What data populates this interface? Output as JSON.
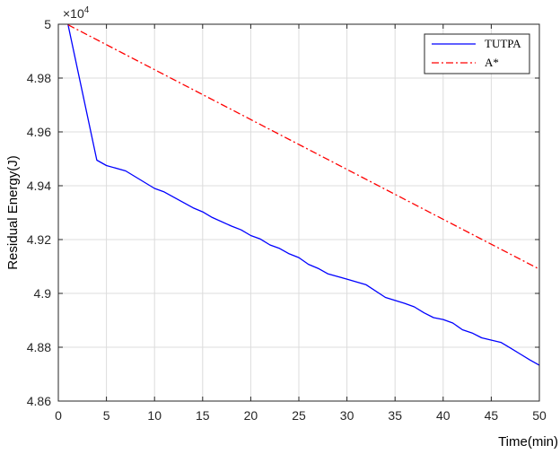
{
  "chart_data": {
    "type": "line",
    "xlabel": "Time(min)",
    "ylabel": "Residual Energy(J)",
    "xlim": [
      0,
      50
    ],
    "ylim": [
      4.86,
      5.0
    ],
    "y_multiplier": {
      "base": "×10",
      "exponent": "4"
    },
    "xticks": [
      0,
      5,
      10,
      15,
      20,
      25,
      30,
      35,
      40,
      45,
      50
    ],
    "yticks": [
      4.86,
      4.88,
      4.9,
      4.92,
      4.94,
      4.96,
      4.98,
      5.0
    ],
    "xtick_labels": [
      "0",
      "5",
      "10",
      "15",
      "20",
      "25",
      "30",
      "35",
      "40",
      "45",
      "50"
    ],
    "ytick_labels": [
      "4.86",
      "4.88",
      "4.9",
      "4.92",
      "4.94",
      "4.96",
      "4.98",
      "5"
    ],
    "grid": true,
    "legend_position": "top-right",
    "series": [
      {
        "name": "TUTPA",
        "color": "#0000ff",
        "style": "solid",
        "x": [
          1,
          4,
          5,
          7,
          10,
          11,
          14,
          15,
          16,
          18,
          19,
          20,
          21,
          22,
          23,
          24,
          25,
          26,
          27,
          28,
          29,
          30,
          32,
          34,
          36,
          37,
          38,
          39,
          40,
          41,
          42,
          43,
          44,
          46,
          47,
          48,
          49,
          50
        ],
        "y": [
          5.0,
          4.9495,
          4.9475,
          4.9455,
          4.939,
          4.9377,
          4.9318,
          4.9303,
          4.9282,
          4.925,
          4.9236,
          4.9215,
          4.9202,
          4.918,
          4.9167,
          4.9147,
          4.9133,
          4.9108,
          4.9093,
          4.9073,
          4.9063,
          4.9053,
          4.9032,
          4.8985,
          4.8963,
          4.895,
          4.8928,
          4.891,
          4.8903,
          4.889,
          4.8865,
          4.8853,
          4.8835,
          4.8818,
          4.8797,
          4.8775,
          4.8753,
          4.8733
        ]
      },
      {
        "name": "A*",
        "color": "#ff0000",
        "style": "dashdot",
        "x": [
          1,
          50
        ],
        "y": [
          4.9998,
          4.909
        ]
      }
    ]
  }
}
